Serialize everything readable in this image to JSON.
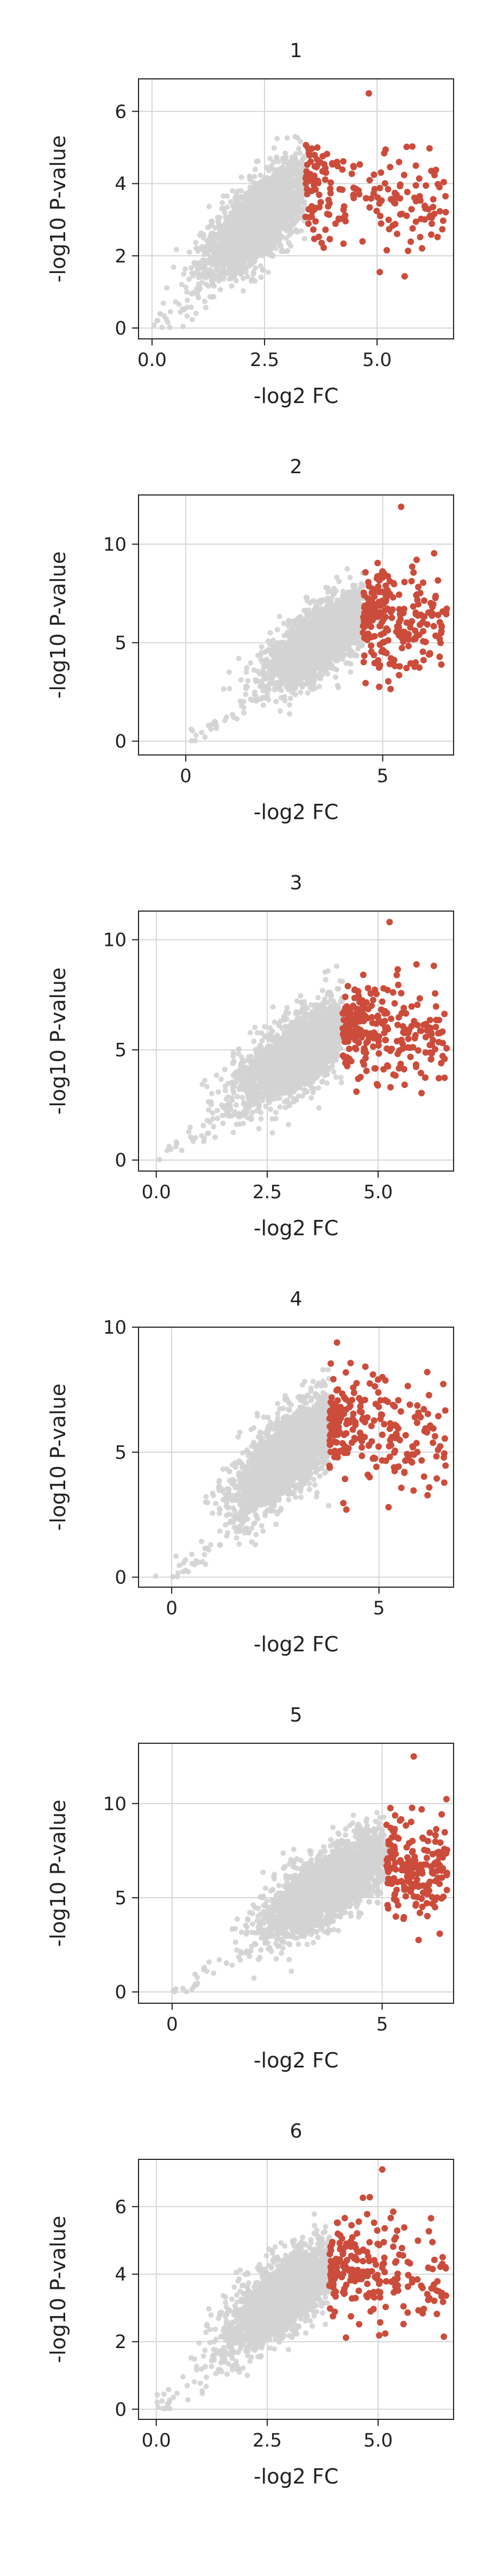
{
  "colors": {
    "background": "#d3d3d3",
    "highlight": "#cc4c3b",
    "grid": "#d6d6d6",
    "axis": "#222222"
  },
  "chart_data": [
    {
      "type": "scatter",
      "title": "1",
      "xlabel": "-log2 FC",
      "ylabel": "-log10 P-value",
      "xlim": [
        -0.3,
        6.7
      ],
      "ylim": [
        -0.3,
        6.9
      ],
      "xticks": [
        0,
        2.5,
        5
      ],
      "xtick_labels": [
        "0.0",
        "2.5",
        "5.0"
      ],
      "yticks": [
        0,
        2,
        4,
        6
      ],
      "ytick_labels": [
        "0",
        "2",
        "4",
        "6"
      ],
      "threshold": 3.4,
      "center": [
        2.4,
        3.0
      ],
      "spread": [
        0.6,
        0.75
      ],
      "ymax_point": 6.5,
      "grid": true
    },
    {
      "type": "scatter",
      "title": "2",
      "xlabel": "-log2 FC",
      "ylabel": "-log10 P-value",
      "xlim": [
        -1.2,
        6.8
      ],
      "ylim": [
        -0.7,
        12.5
      ],
      "xticks": [
        0,
        5
      ],
      "xtick_labels": [
        "0",
        "5"
      ],
      "yticks": [
        0,
        5,
        10
      ],
      "ytick_labels": [
        "0",
        "5",
        "10"
      ],
      "threshold": 4.5,
      "center": [
        3.5,
        5.2
      ],
      "spread": [
        0.75,
        1.2
      ],
      "ymax_point": 11.9,
      "grid": true
    },
    {
      "type": "scatter",
      "title": "3",
      "xlabel": "-log2 FC",
      "ylabel": "-log10 P-value",
      "xlim": [
        -0.4,
        6.7
      ],
      "ylim": [
        -0.5,
        11.3
      ],
      "xticks": [
        0,
        2.5,
        5
      ],
      "xtick_labels": [
        "0.0",
        "2.5",
        "5.0"
      ],
      "yticks": [
        0,
        5,
        10
      ],
      "ytick_labels": [
        "0",
        "5",
        "10"
      ],
      "threshold": 4.2,
      "center": [
        3.3,
        5.0
      ],
      "spread": [
        0.75,
        1.2
      ],
      "ymax_point": 10.8,
      "grid": true
    },
    {
      "type": "scatter",
      "title": "4",
      "xlabel": "-log2 FC",
      "ylabel": "-log10 P-value",
      "xlim": [
        -0.8,
        6.8
      ],
      "ylim": [
        -0.4,
        10.0
      ],
      "xticks": [
        0,
        5
      ],
      "xtick_labels": [
        "0",
        "5"
      ],
      "yticks": [
        0,
        5,
        10
      ],
      "ytick_labels": [
        "0",
        "5",
        "10"
      ],
      "threshold": 3.8,
      "center": [
        2.9,
        5.0
      ],
      "spread": [
        0.7,
        1.2
      ],
      "ymax_point": 8.0,
      "grid": true
    },
    {
      "type": "scatter",
      "title": "5",
      "xlabel": "-log2 FC",
      "ylabel": "-log10 P-value",
      "xlim": [
        -0.8,
        6.7
      ],
      "ylim": [
        -0.6,
        13.2
      ],
      "xticks": [
        0,
        5
      ],
      "xtick_labels": [
        "0",
        "5"
      ],
      "yticks": [
        0,
        5,
        10
      ],
      "ytick_labels": [
        "0",
        "5",
        "10"
      ],
      "threshold": 5.1,
      "center": [
        3.8,
        5.7
      ],
      "spread": [
        0.8,
        1.3
      ],
      "ymax_point": 12.5,
      "grid": true
    },
    {
      "type": "scatter",
      "title": "6",
      "xlabel": "-log2 FC",
      "ylabel": "-log10 P-value",
      "xlim": [
        -0.4,
        6.7
      ],
      "ylim": [
        -0.3,
        7.4
      ],
      "xticks": [
        0,
        2.5,
        5
      ],
      "xtick_labels": [
        "0.0",
        "2.5",
        "5.0"
      ],
      "yticks": [
        0,
        2,
        4,
        6
      ],
      "ytick_labels": [
        "0",
        "2",
        "4",
        "6"
      ],
      "threshold": 3.9,
      "center": [
        2.9,
        3.4
      ],
      "spread": [
        0.65,
        0.75
      ],
      "ymax_point": 7.1,
      "grid": true
    }
  ]
}
